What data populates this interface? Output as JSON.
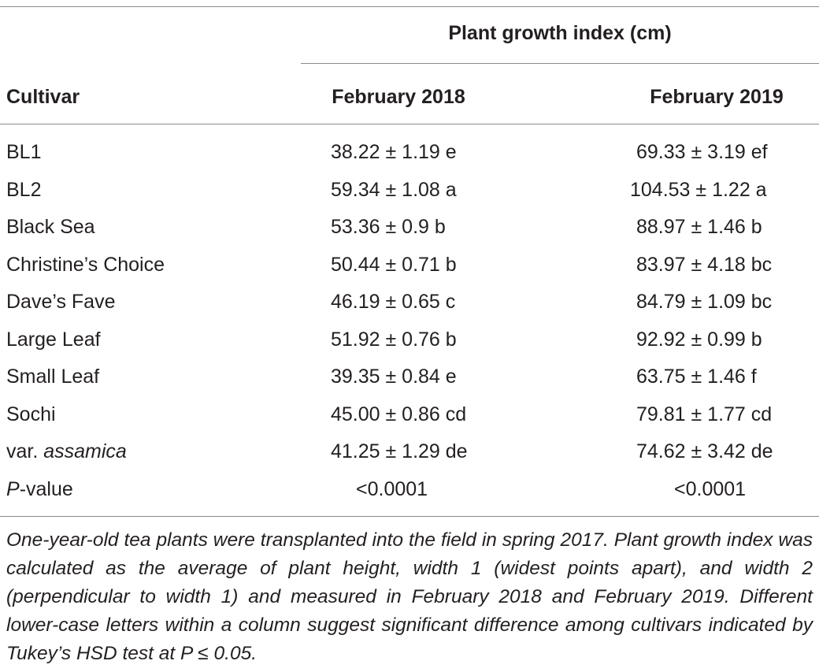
{
  "table": {
    "group_header": "Plant growth index (cm)",
    "columns": [
      "Cultivar",
      "February 2018",
      "February 2019"
    ],
    "rows": [
      {
        "cultivar_prefix": "BL1",
        "cultivar_italic": "",
        "feb2018": "38.22 ± 1.19 e",
        "feb2019": "69.33 ± 3.19 ef"
      },
      {
        "cultivar_prefix": "BL2",
        "cultivar_italic": "",
        "feb2018": "59.34 ± 1.08 a",
        "feb2019": "104.53 ± 1.22 a"
      },
      {
        "cultivar_prefix": "Black Sea",
        "cultivar_italic": "",
        "feb2018": "53.36 ± 0.9 b",
        "feb2019": "88.97 ± 1.46 b"
      },
      {
        "cultivar_prefix": "Christine’s Choice",
        "cultivar_italic": "",
        "feb2018": "50.44 ± 0.71 b",
        "feb2019": "83.97 ± 4.18 bc"
      },
      {
        "cultivar_prefix": "Dave’s Fave",
        "cultivar_italic": "",
        "feb2018": "46.19 ± 0.65 c",
        "feb2019": "84.79 ± 1.09 bc"
      },
      {
        "cultivar_prefix": "Large Leaf",
        "cultivar_italic": "",
        "feb2018": "51.92 ± 0.76 b",
        "feb2019": "92.92 ± 0.99 b"
      },
      {
        "cultivar_prefix": "Small Leaf",
        "cultivar_italic": "",
        "feb2018": "39.35 ± 0.84 e",
        "feb2019": "63.75 ± 1.46 f"
      },
      {
        "cultivar_prefix": "Sochi",
        "cultivar_italic": "",
        "feb2018": "45.00 ± 0.86 cd",
        "feb2019": "79.81 ± 1.77 cd"
      },
      {
        "cultivar_prefix": "var. ",
        "cultivar_italic": "assamica",
        "feb2018": "41.25 ± 1.29 de",
        "feb2019": "74.62 ± 3.42 de"
      }
    ],
    "pvalue_row": {
      "label_italic": "P",
      "label_rest": "-value",
      "feb2018": "<0.0001",
      "feb2019": "<0.0001"
    }
  },
  "footnote": "One-year-old tea plants were transplanted into the field in spring 2017. Plant growth index was calculated as the average of plant height, width 1 (widest points apart), and width 2 (perpendicular to width 1) and measured in February 2018 and February 2019. Different lower-case letters within a column suggest significant difference among cultivars indicated by Tukey’s HSD test at P ≤ 0.05."
}
